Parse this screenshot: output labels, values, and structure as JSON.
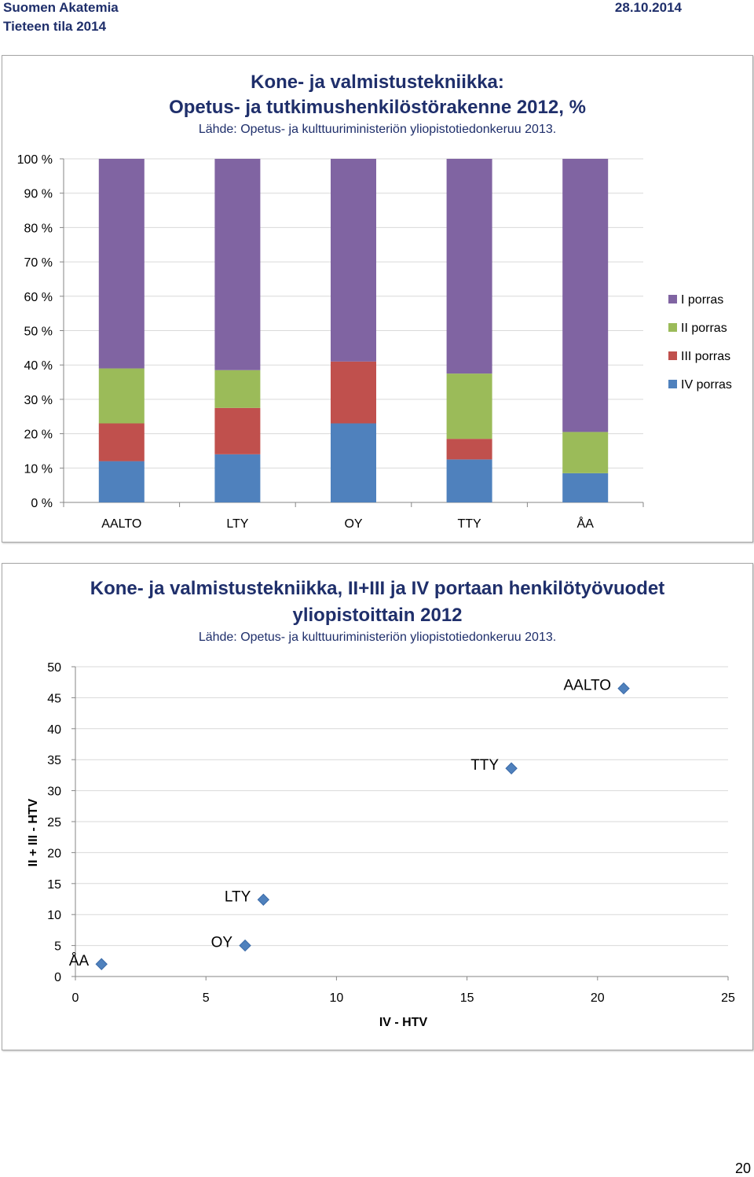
{
  "header": {
    "org": "Suomen Akatemia",
    "subtitle": "Tieteen tila 2014",
    "date": "28.10.2014"
  },
  "page_number": "20",
  "charts": {
    "bar": {
      "title_line1": "Kone- ja valmistustekniikka:",
      "title_line2": "Opetus- ja tutkimushenkilöstörakenne 2012, %",
      "source": "Lähde: Opetus- ja kulttuuriministeriön yliopistotiedonkeruu 2013."
    },
    "scatter": {
      "title_line1": "Kone- ja valmistustekniikka, II+III ja IV portaan henkilötyövuodet",
      "title_line2": "yliopistoittain 2012",
      "source": "Lähde: Opetus- ja kulttuuriministeriön yliopistotiedonkeruu 2013."
    }
  },
  "chart_data": [
    {
      "type": "bar",
      "stacked": true,
      "percent": true,
      "title": "Kone- ja valmistustekniikka: Opetus- ja tutkimushenkilöstörakenne 2012, %",
      "categories": [
        "AALTO",
        "LTY",
        "OY",
        "TTY",
        "ÅA"
      ],
      "series": [
        {
          "name": "IV porras",
          "color": "#4f81bd",
          "values": [
            12,
            14,
            23,
            12.5,
            8.5
          ]
        },
        {
          "name": "III porras",
          "color": "#c0504d",
          "values": [
            11,
            13.5,
            18,
            6,
            0
          ]
        },
        {
          "name": "II porras",
          "color": "#9bbb59",
          "values": [
            16,
            11,
            0,
            19,
            12
          ]
        },
        {
          "name": "I porras",
          "color": "#8064a2",
          "values": [
            61,
            61.5,
            59,
            62.5,
            79.5
          ]
        }
      ],
      "yticks": [
        "0 %",
        "10 %",
        "20 %",
        "30 %",
        "40 %",
        "50 %",
        "60 %",
        "70 %",
        "80 %",
        "90 %",
        "100 %"
      ],
      "ylim": [
        0,
        100
      ],
      "legend_position": "right",
      "legend": [
        "I porras",
        "II porras",
        "III porras",
        "IV porras"
      ]
    },
    {
      "type": "scatter",
      "title": "Kone- ja valmistustekniikka, II+III ja IV portaan henkilötyövuodet yliopistoittain 2012",
      "xlabel": "IV - HTV",
      "ylabel": "II + III - HTV",
      "xlim": [
        0,
        25
      ],
      "ylim": [
        0,
        50
      ],
      "xticks": [
        0,
        5,
        10,
        15,
        20,
        25
      ],
      "yticks": [
        0,
        5,
        10,
        15,
        20,
        25,
        30,
        35,
        40,
        45,
        50
      ],
      "marker_color": "#4f81bd",
      "points": [
        {
          "label": "AALTO",
          "x": 21,
          "y": 46.5
        },
        {
          "label": "TTY",
          "x": 16.7,
          "y": 33.6
        },
        {
          "label": "LTY",
          "x": 7.2,
          "y": 12.4
        },
        {
          "label": "OY",
          "x": 6.5,
          "y": 5
        },
        {
          "label": "ÅA",
          "x": 1,
          "y": 2
        }
      ]
    }
  ]
}
